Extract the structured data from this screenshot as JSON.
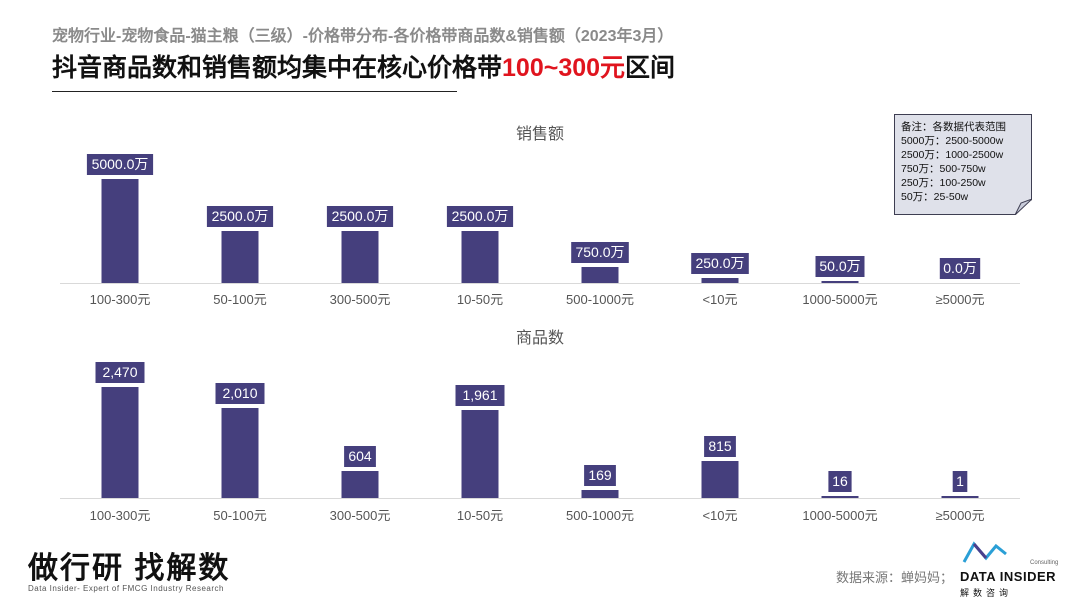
{
  "subtitle": "宠物行业-宠物食品-猫主粮（三级）-价格带分布-各价格带商品数&销售额（2023年3月）",
  "headline": {
    "prefix": "抖音商品数和销售额均集中在核心价格带",
    "highlight": "100~300元",
    "suffix": "区间"
  },
  "note": {
    "lines": [
      "备注：各数据代表范围",
      "5000万：2500-5000w",
      "2500万：1000-2500w",
      "750万：500-750w",
      "250万：100-250w",
      "50万：25-50w"
    ]
  },
  "chart_data": [
    {
      "type": "bar",
      "title": "销售额",
      "categories": [
        "100-300元",
        "50-100元",
        "300-500元",
        "10-50元",
        "500-1000元",
        "<10元",
        "1000-5000元",
        "≥5000元"
      ],
      "values": [
        5000.0,
        2500.0,
        2500.0,
        2500.0,
        750.0,
        250.0,
        50.0,
        0.0
      ],
      "data_labels": [
        "5000.0万",
        "2500.0万",
        "2500.0万",
        "2500.0万",
        "750.0万",
        "250.0万",
        "50.0万",
        "0.0万"
      ],
      "ylim": [
        0,
        5000
      ],
      "grid": false,
      "bar_color": "#453f7d"
    },
    {
      "type": "bar",
      "title": "商品数",
      "categories": [
        "100-300元",
        "50-100元",
        "300-500元",
        "10-50元",
        "500-1000元",
        "<10元",
        "1000-5000元",
        "≥5000元"
      ],
      "values": [
        2470,
        2010,
        604,
        1961,
        169,
        815,
        16,
        1
      ],
      "data_labels": [
        "2,470",
        "2,010",
        "604",
        "1,961",
        "169",
        "815",
        "16",
        "1"
      ],
      "ylim": [
        0,
        2470
      ],
      "grid": false,
      "bar_color": "#453f7d"
    }
  ],
  "footer": {
    "slogan": "做行研 找解数",
    "slogan_sub": "Data Insider- Expert of FMCG Industry Research",
    "source": "数据来源：蝉妈妈；",
    "logo_consulting": "Consulting",
    "logo_main": "DATA INSIDER",
    "logo_sub": "解数咨询"
  }
}
